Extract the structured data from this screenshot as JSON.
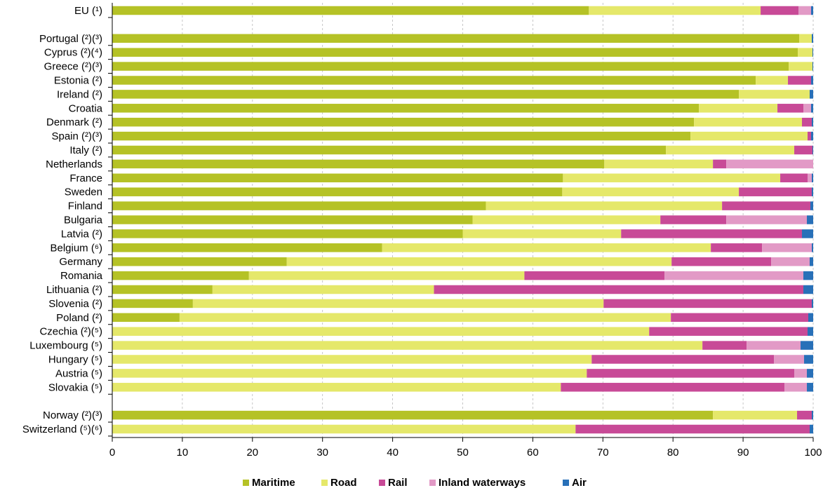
{
  "chart_data": {
    "type": "bar",
    "orientation": "horizontal",
    "stacked": true,
    "xlim": [
      0,
      100
    ],
    "x_ticks": [
      "0",
      "10",
      "20",
      "30",
      "40",
      "50",
      "60",
      "70",
      "80",
      "90",
      "100"
    ],
    "grid": "vertical dashed",
    "legend_position": "bottom",
    "categories": [
      "EU (¹)",
      "",
      "Portugal (²)(³)",
      "Cyprus (²)(⁴)",
      "Greece (²)(³)",
      "Estonia (²)",
      "Ireland (²)",
      "Croatia",
      "Denmark (²)",
      "Spain (²)(³)",
      "Italy (²)",
      "Netherlands",
      "France",
      "Sweden",
      "Finland",
      "Bulgaria",
      "Latvia (²)",
      "Belgium (⁶)",
      "Germany",
      "Romania",
      "Lithuania (²)",
      "Slovenia (²)",
      "Poland (²)",
      "Czechia (²)(⁵)",
      "Luxembourg (⁵)",
      "Hungary (⁵)",
      "Austria (⁵)",
      "Slovakia (⁵)",
      "",
      "Norway (²)(³)",
      "Switzerland (⁵)(⁶)"
    ],
    "series": [
      {
        "name": "Maritime",
        "color": "#b5c226",
        "values": [
          68,
          null,
          98,
          97.8,
          96.5,
          91.8,
          89.4,
          83.7,
          83,
          82.5,
          79,
          70.2,
          64.3,
          64.2,
          53.3,
          51.4,
          50,
          38.5,
          24.9,
          19.5,
          14.3,
          11.5,
          9.6,
          0,
          0,
          0,
          0,
          0,
          null,
          85.7,
          0
        ]
      },
      {
        "name": "Road",
        "color": "#e5e86a",
        "values": [
          24.5,
          null,
          1.8,
          2.1,
          3.4,
          4.6,
          10.1,
          11.2,
          15.4,
          16.7,
          18.3,
          15.5,
          31,
          25.2,
          33.7,
          26.8,
          22.6,
          46.9,
          54.9,
          39.3,
          31.6,
          58.6,
          70.1,
          76.6,
          84.2,
          68.4,
          67.7,
          64,
          null,
          12,
          66.1
        ]
      },
      {
        "name": "Rail",
        "color": "#c84a97",
        "values": [
          5.4,
          null,
          0,
          0,
          0,
          3.3,
          0,
          3.7,
          1.4,
          0.5,
          2.6,
          1.9,
          3.9,
          10.4,
          12.6,
          9.4,
          25.8,
          7.3,
          14.2,
          20,
          52.7,
          29.7,
          19.6,
          22.6,
          6.3,
          26,
          29.6,
          31.9,
          null,
          2.1,
          33.4
        ]
      },
      {
        "name": "Inland waterways",
        "color": "#e29ac6",
        "values": [
          1.8,
          null,
          0,
          0,
          0,
          0,
          0,
          1.1,
          0,
          0,
          0,
          12.4,
          0.6,
          0,
          0,
          11.5,
          0,
          7.1,
          5.5,
          19.8,
          0,
          0,
          0,
          0,
          7.7,
          4.3,
          1.8,
          3.2,
          null,
          0,
          0
        ]
      },
      {
        "name": "Air",
        "color": "#2870b8",
        "values": [
          0.3,
          null,
          0.2,
          0.1,
          0.1,
          0.3,
          0.5,
          0.3,
          0.2,
          0.3,
          0.1,
          0,
          0.2,
          0.2,
          0.4,
          0.9,
          1.6,
          0.2,
          0.5,
          1.4,
          1.4,
          0.2,
          0.7,
          0.8,
          1.8,
          1.3,
          0.9,
          0.9,
          null,
          0.2,
          0.5
        ]
      }
    ]
  }
}
